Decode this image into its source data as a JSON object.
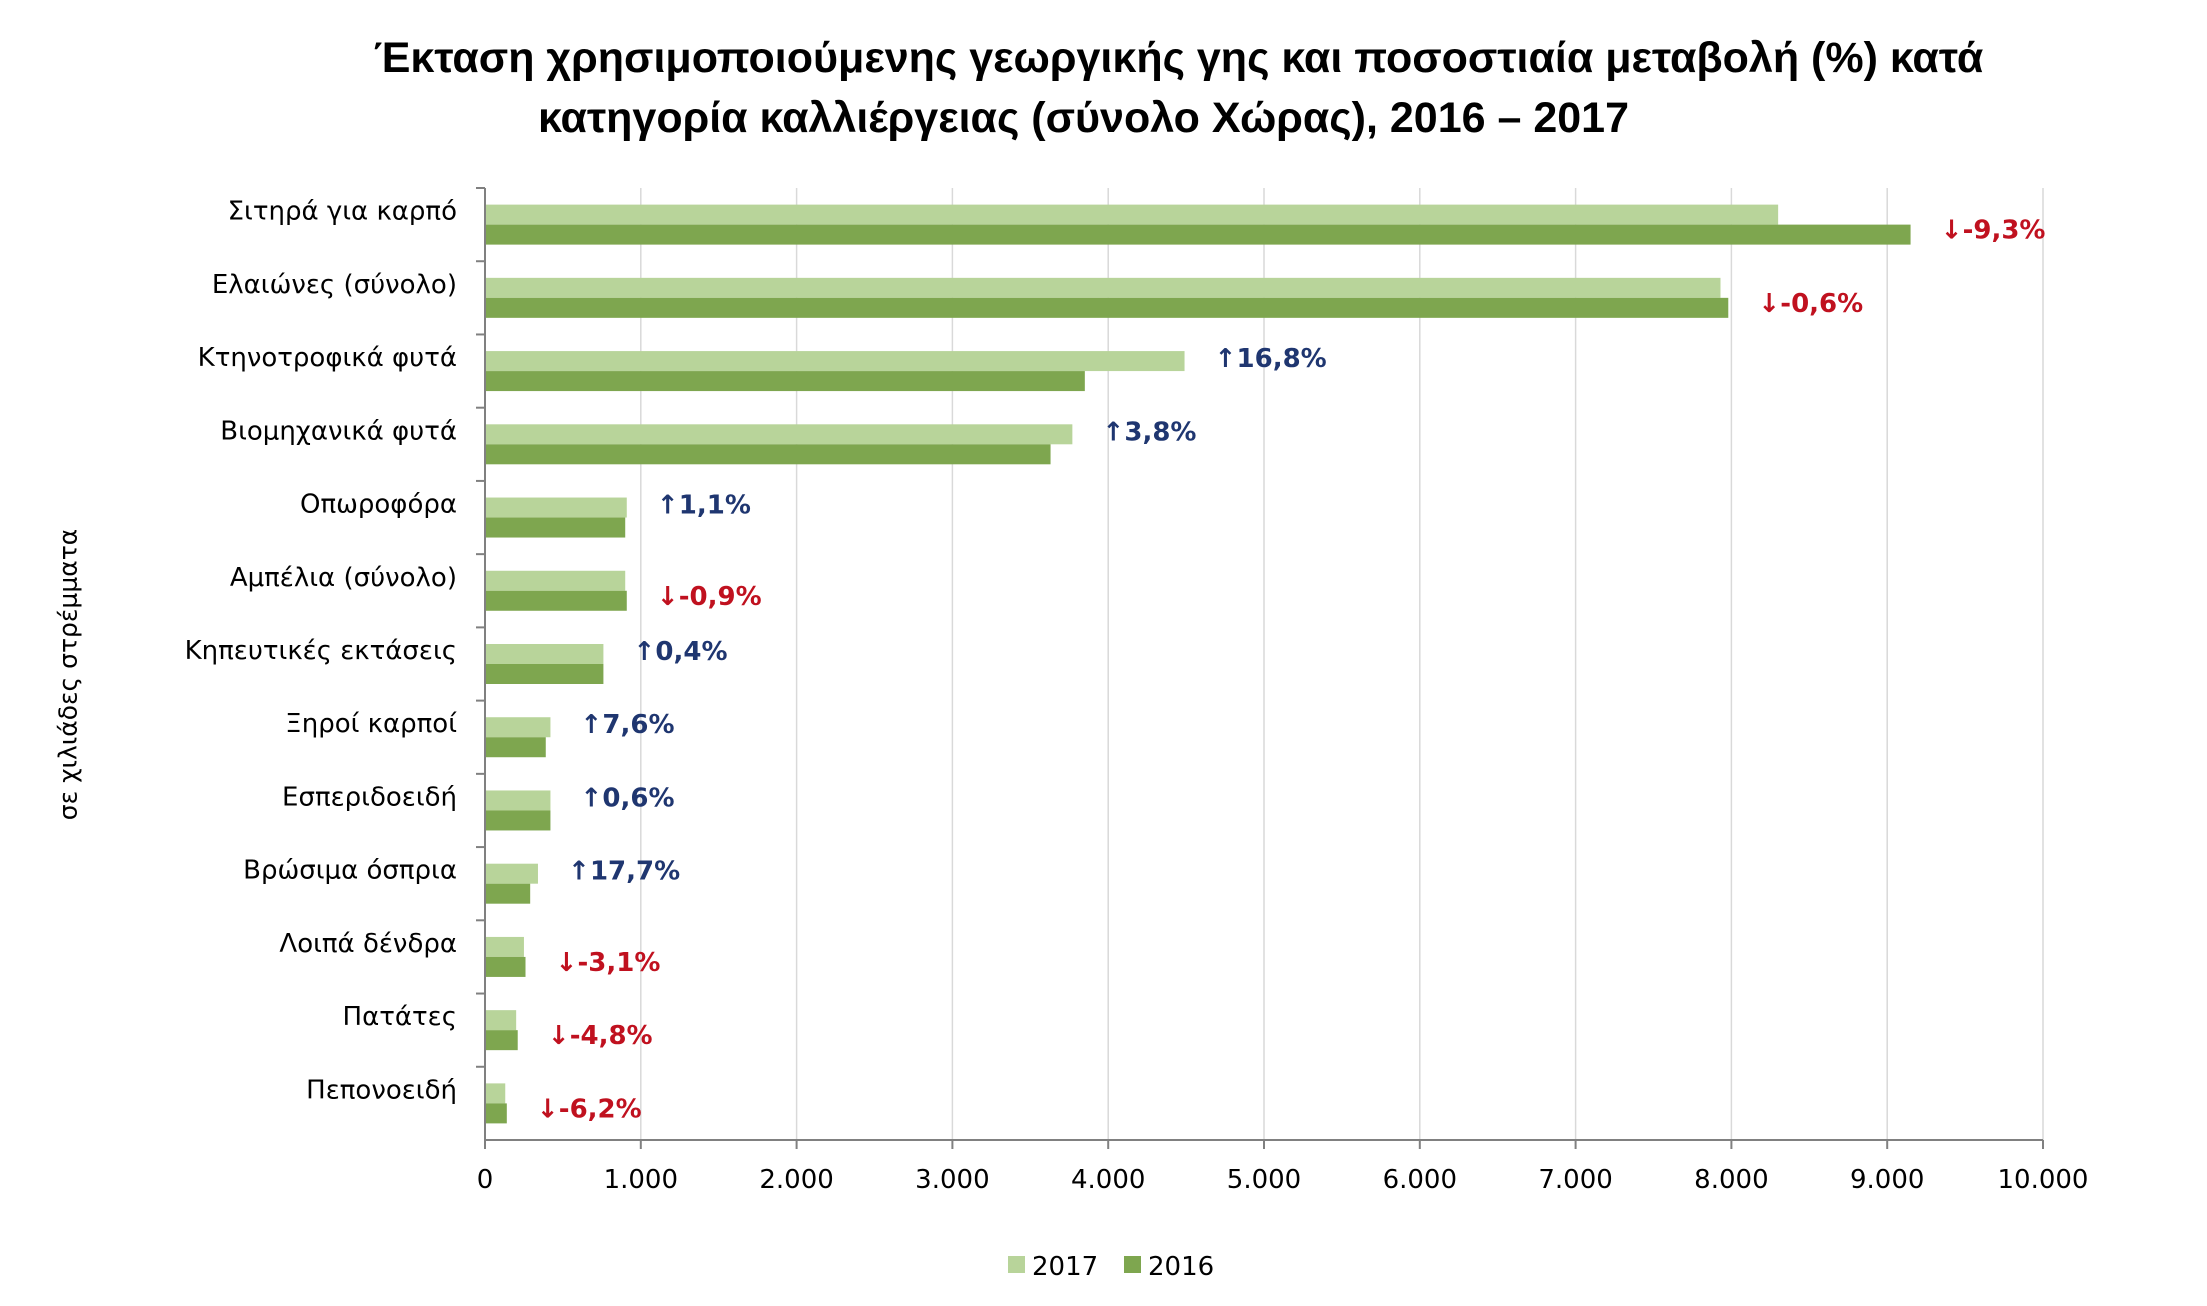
{
  "chart_data": {
    "type": "bar",
    "orientation": "horizontal",
    "title_lines": [
      "Έκταση χρησιμοποιούμενης γεωργικής γης και ποσοστιαία μεταβολή (%) κατά",
      "κατηγορία καλλιέργειας (σύνολο Χώρας), 2016 – 2017"
    ],
    "ylabel": "σε χιλιάδες στρέμματα",
    "xlim": [
      0,
      10000
    ],
    "xticks": [
      0,
      1000,
      2000,
      3000,
      4000,
      5000,
      6000,
      7000,
      8000,
      9000,
      10000
    ],
    "xtick_labels": [
      "0",
      "1.000",
      "2.000",
      "3.000",
      "4.000",
      "5.000",
      "6.000",
      "7.000",
      "8.000",
      "9.000",
      "10.000"
    ],
    "grid": true,
    "legend_position": "bottom",
    "categories": [
      "Σιτηρά για καρπό",
      "Ελαιώνες (σύνολο)",
      "Κτηνοτροφικά φυτά",
      "Βιομηχανικά φυτά",
      "Οπωροφόρα",
      "Αμπέλια (σύνολο)",
      "Κηπευτικές εκτάσεις",
      "Ξηροί καρποί",
      "Εσπεριδοειδή",
      "Βρώσιμα όσπρια",
      "Λοιπά δένδρα",
      "Πατάτες",
      "Πεπονοειδή"
    ],
    "series": [
      {
        "name": "2017",
        "color": "#b8d49a",
        "values": [
          8300,
          7930,
          4490,
          3770,
          910,
          900,
          760,
          420,
          420,
          340,
          250,
          200,
          130
        ]
      },
      {
        "name": "2016",
        "color": "#7ea64f",
        "values": [
          9150,
          7980,
          3850,
          3630,
          900,
          910,
          760,
          390,
          420,
          290,
          260,
          210,
          140
        ]
      }
    ],
    "changes": [
      "-9,3%",
      "-0,6%",
      "16,8%",
      "3,8%",
      "1,1%",
      "-0,9%",
      "0,4%",
      "7,6%",
      "0,6%",
      "17,7%",
      "-3,1%",
      "-4,8%",
      "-6,2%"
    ],
    "change_direction": [
      "down",
      "down",
      "up",
      "up",
      "up",
      "down",
      "up",
      "up",
      "up",
      "up",
      "down",
      "down",
      "down"
    ],
    "up_color": "#1f3670",
    "down_color": "#c0111f",
    "up_arrow": "↑",
    "down_arrow": "↓"
  }
}
